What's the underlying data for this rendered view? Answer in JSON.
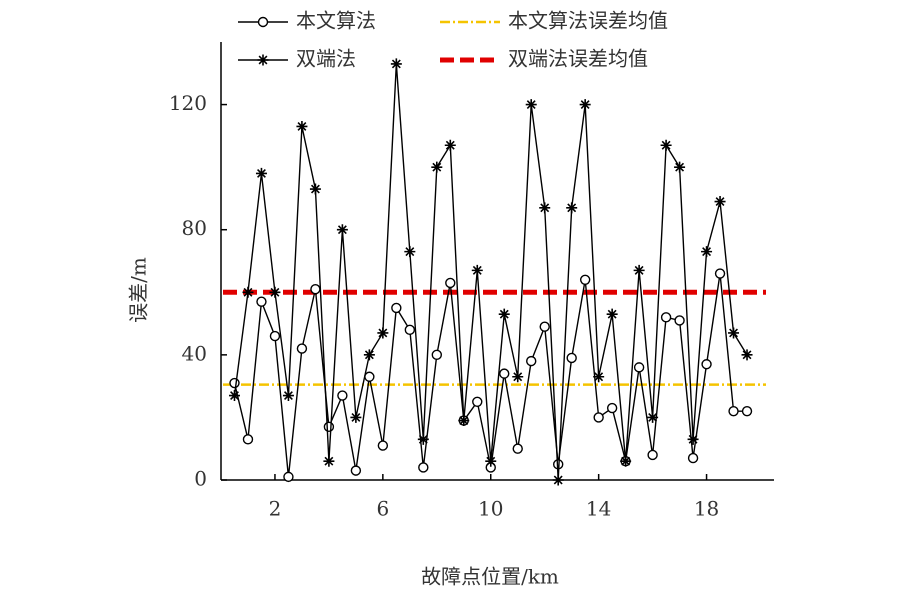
{
  "chart_data": {
    "type": "line",
    "x_label": "故障点位置/km",
    "y_label": "误差/m",
    "x": [
      0.5,
      1,
      1.5,
      2,
      2.5,
      3,
      3.5,
      4,
      4.5,
      5,
      5.5,
      6,
      6.5,
      7,
      7.5,
      8,
      8.5,
      9,
      9.5,
      10,
      10.5,
      11,
      11.5,
      12,
      12.5,
      13,
      13.5,
      14,
      14.5,
      15,
      15.5,
      16,
      16.5,
      17,
      17.5,
      18,
      18.5,
      19,
      19.5
    ],
    "series": [
      {
        "name": "本文算法",
        "color": "#000000",
        "marker": "circle",
        "values": [
          31,
          13,
          57,
          46,
          1,
          42,
          61,
          17,
          27,
          3,
          33,
          11,
          55,
          48,
          4,
          40,
          63,
          19,
          25,
          4,
          34,
          10,
          38,
          49,
          5,
          39,
          64,
          20,
          23,
          6,
          36,
          8,
          52,
          51,
          7,
          37,
          66,
          22,
          22
        ]
      },
      {
        "name": "双端法",
        "color": "#000000",
        "marker": "star",
        "values": [
          27,
          60,
          98,
          60,
          27,
          113,
          93,
          6,
          80,
          20,
          40,
          47,
          133,
          73,
          13,
          100,
          107,
          19,
          67,
          6,
          53,
          33,
          120,
          87,
          0,
          87,
          120,
          33,
          53,
          6,
          67,
          20,
          107,
          100,
          13,
          73,
          89,
          47,
          40
        ]
      }
    ],
    "mean_lines": [
      {
        "name": "本文算法误差均值",
        "color": "#f5c400",
        "value": 30.5,
        "dash": "10 3 2 3"
      },
      {
        "name": "双端法误差均值",
        "color": "#e00000",
        "value": 60,
        "dash": "14 6"
      }
    ],
    "xlim": [
      0,
      20.5
    ],
    "ylim": [
      0,
      140
    ],
    "xticks": [
      2,
      6,
      10,
      14,
      18
    ],
    "yticks": [
      0,
      40,
      80,
      120
    ],
    "grid": false
  }
}
